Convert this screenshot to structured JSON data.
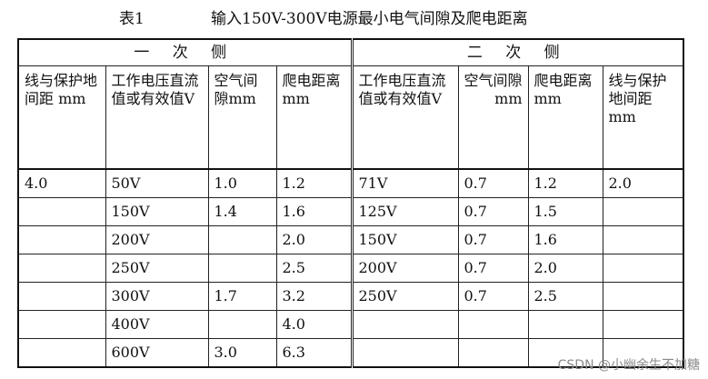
{
  "caption": {
    "label": "表1",
    "title": "输入150V-300V电源最小电气间隙及爬电距离"
  },
  "table": {
    "groups": [
      "一 次 侧",
      "二 次 侧"
    ],
    "headers": [
      "线与保护地间距 mm",
      "工作电压直流值或有效值V",
      "空气间隙mm",
      "爬电距离mm",
      "工作电压直流值或有效值V",
      "空气间隙mm",
      "爬电距离mm",
      "线与保护地间距 mm"
    ],
    "rows": [
      [
        "4.0",
        "50V",
        "1.0",
        "1.2",
        "71V",
        "0.7",
        "1.2",
        "2.0"
      ],
      [
        "",
        "150V",
        "1.4",
        "1.6",
        "125V",
        "0.7",
        "1.5",
        ""
      ],
      [
        "",
        "200V",
        "",
        "2.0",
        "150V",
        "0.7",
        "1.6",
        ""
      ],
      [
        "",
        "250V",
        "",
        "2.5",
        "200V",
        "0.7",
        "2.0",
        ""
      ],
      [
        "",
        "300V",
        "1.7",
        "3.2",
        "250V",
        "0.7",
        "2.5",
        ""
      ],
      [
        "",
        "400V",
        "",
        "4.0",
        "",
        "",
        "",
        ""
      ],
      [
        "",
        "600V",
        "3.0",
        "6.3",
        "",
        "",
        "",
        ""
      ]
    ]
  },
  "watermark": "CSDN @小幽余生不加糖"
}
